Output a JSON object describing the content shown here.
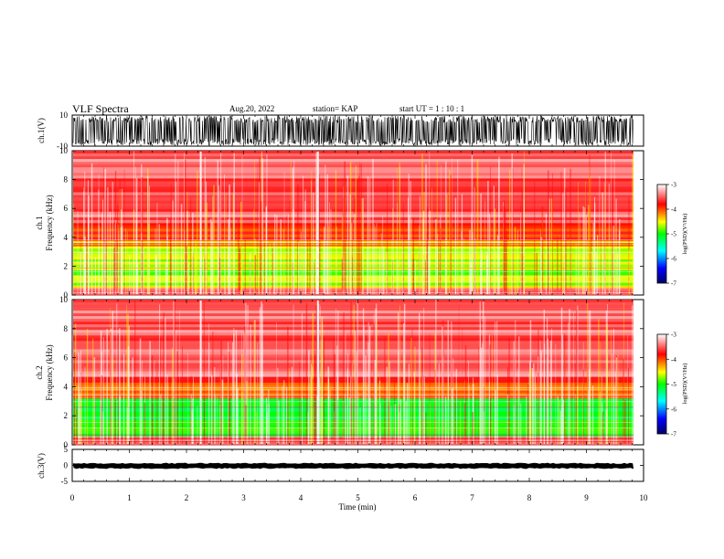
{
  "header": {
    "title": "VLF Spectra",
    "date": "Aug.20, 2022",
    "station": "station= KAP",
    "start": "start  UT =   1 : 10 : 1"
  },
  "chart_data": [
    {
      "type": "line",
      "name": "ch1-waveform",
      "ylabel": "ch.1(V)",
      "ylim": [
        -10,
        10
      ],
      "yticks": [
        "10",
        "-10"
      ],
      "xlim": [
        0,
        10
      ],
      "envelope": [
        -9.5,
        9.5
      ]
    },
    {
      "type": "heatmap",
      "name": "ch1-spectrogram",
      "ylabel": "ch.1\nFrequency  (kHz)",
      "ylabel_line1": "ch.1",
      "ylabel_line2": "Frequency  (kHz)",
      "ylim": [
        0,
        10
      ],
      "yticks": [
        "0",
        "2",
        "4",
        "6",
        "8",
        "10"
      ],
      "xlim": [
        0,
        9.82
      ],
      "bands": [
        {
          "from": 0,
          "to": 0.5,
          "level": -3.6
        },
        {
          "from": 0.5,
          "to": 1.0,
          "level": -4.6
        },
        {
          "from": 1.0,
          "to": 3.4,
          "level": -4.7
        },
        {
          "from": 3.4,
          "to": 3.8,
          "level": -4.2
        },
        {
          "from": 3.8,
          "to": 5.0,
          "level": -3.9
        },
        {
          "from": 5.0,
          "to": 10,
          "level": -3.5
        }
      ],
      "colorbar": {
        "label": "log(PSD)(V²/Hz)",
        "ticks": [
          "-3",
          "-4",
          "-5",
          "-6",
          "-7"
        ],
        "range": [
          -7,
          -3
        ]
      }
    },
    {
      "type": "heatmap",
      "name": "ch2-spectrogram",
      "ylabel": "ch.2\nFrequency  (kHz)",
      "ylabel_line1": "ch.2",
      "ylabel_line2": "Frequency  (kHz)",
      "ylim": [
        0,
        10
      ],
      "yticks": [
        "0",
        "2",
        "4",
        "6",
        "8",
        "10"
      ],
      "xlim": [
        0,
        9.82
      ],
      "bands": [
        {
          "from": 0,
          "to": 0.6,
          "level": -3.6
        },
        {
          "from": 0.6,
          "to": 3.2,
          "level": -5.1
        },
        {
          "from": 3.2,
          "to": 4.3,
          "level": -4.1
        },
        {
          "from": 4.3,
          "to": 10,
          "level": -3.5
        }
      ],
      "colorbar": {
        "label": "log(PSD)(V²/Hz)",
        "ticks": [
          "-3",
          "-4",
          "-5",
          "-6",
          "-7"
        ],
        "range": [
          -7,
          -3
        ]
      }
    },
    {
      "type": "line",
      "name": "ch3-waveform",
      "ylabel": "ch.3(V)",
      "ylim": [
        -5,
        5
      ],
      "yticks": [
        "5",
        "0",
        "-5"
      ],
      "xlim": [
        0,
        10
      ],
      "envelope": [
        -0.7,
        0.4
      ],
      "xlabel": "Time  (min)",
      "xticks": [
        "0",
        "1",
        "2",
        "3",
        "4",
        "5",
        "6",
        "7",
        "8",
        "9",
        "10"
      ]
    }
  ],
  "colors": {
    "axis": "#000000",
    "colormap": [
      "#000066",
      "#0000ff",
      "#00ffff",
      "#00ff00",
      "#ffff00",
      "#ff0000",
      "#ffffff"
    ]
  }
}
